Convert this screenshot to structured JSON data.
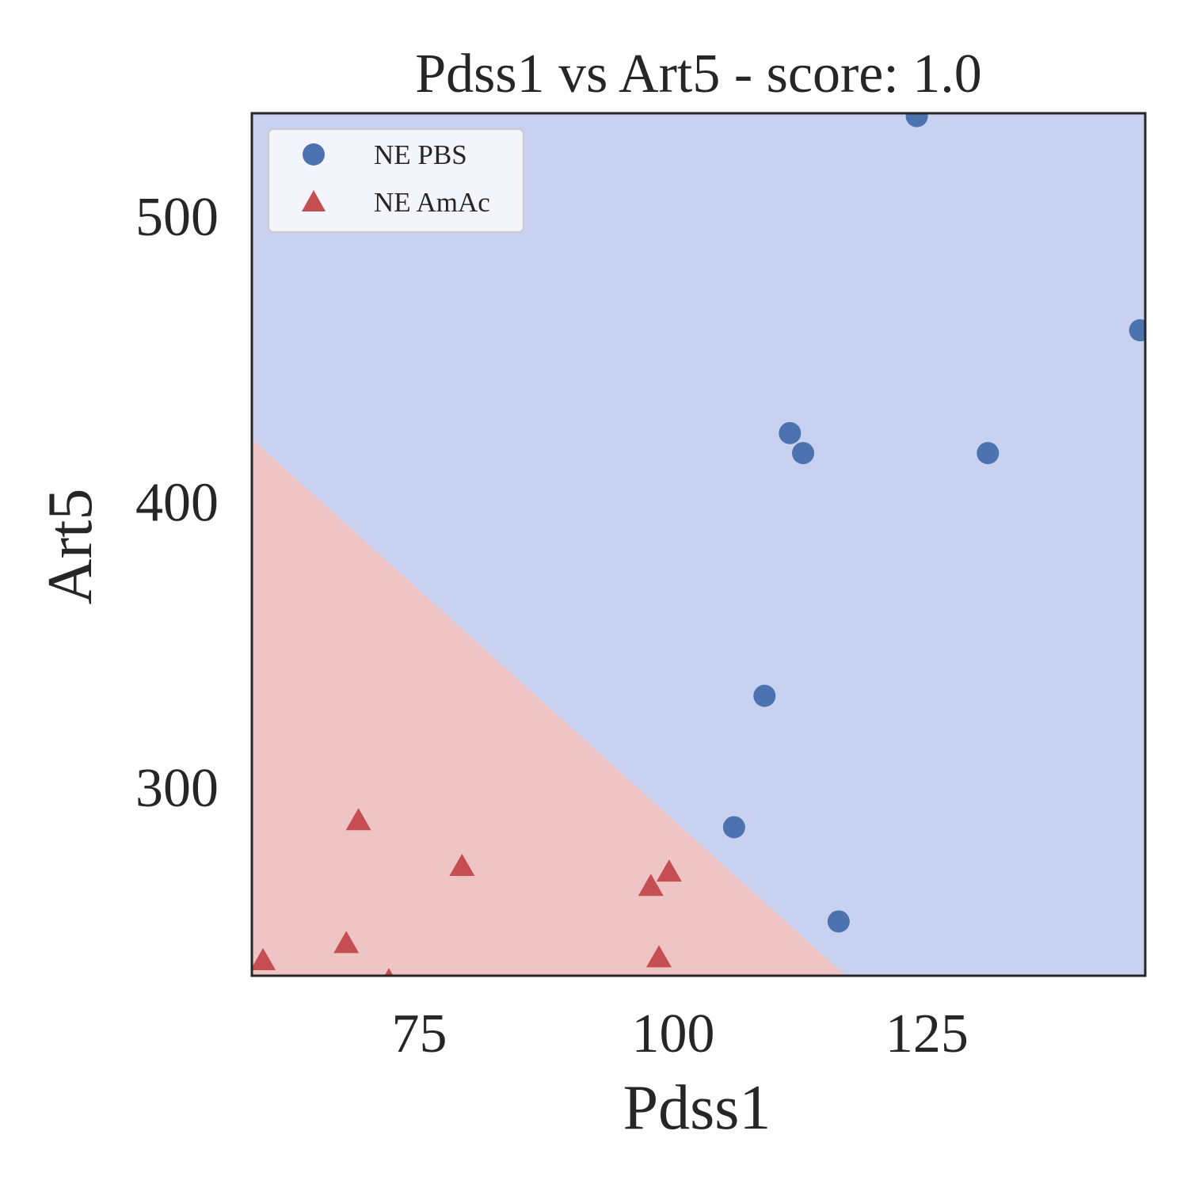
{
  "chart_data": {
    "type": "scatter",
    "title": "Pdss1 vs Art5 - score: 1.0",
    "xlabel": "Pdss1",
    "ylabel": "Art5",
    "xlim": [
      58.5,
      146.5
    ],
    "ylim": [
      234,
      536
    ],
    "xticks": [
      75,
      100,
      125
    ],
    "yticks": [
      300,
      400,
      500
    ],
    "grid": false,
    "legend_position": "top-left",
    "regions": {
      "boundary": [
        [
          58.5,
          422
        ],
        [
          117,
          234
        ]
      ],
      "colors": {
        "NE PBS": "#c9d1f1",
        "NE AmAc": "#efc4c4"
      }
    },
    "series": [
      {
        "name": "NE PBS",
        "marker": "circle",
        "color": "#4c72b0",
        "points": [
          [
            124,
            535
          ],
          [
            146,
            460
          ],
          [
            111.5,
            424
          ],
          [
            112.8,
            417
          ],
          [
            131,
            417
          ],
          [
            109,
            332
          ],
          [
            106,
            286
          ],
          [
            116.3,
            253
          ]
        ]
      },
      {
        "name": "NE AmAc",
        "marker": "triangle",
        "color": "#c44e52",
        "points": [
          [
            69,
            288
          ],
          [
            79.2,
            272
          ],
          [
            99.6,
            270
          ],
          [
            97.8,
            265
          ],
          [
            67.8,
            245
          ],
          [
            59.6,
            239
          ],
          [
            98.6,
            240
          ],
          [
            72,
            232
          ]
        ]
      }
    ]
  }
}
